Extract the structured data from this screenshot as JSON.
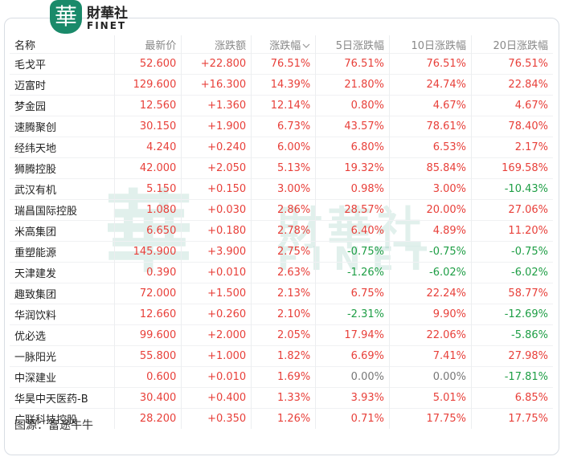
{
  "header": {
    "logo_mark": "華",
    "brand": "財華社",
    "brand_en": "FINET"
  },
  "table": {
    "columns": [
      "名称",
      "最新价",
      "涨跌额",
      "涨跌幅",
      "5日涨跌幅",
      "10日涨跌幅",
      "20日涨跌幅"
    ],
    "rows": [
      [
        "毛戈平",
        "52.600",
        "+22.800",
        "76.51%",
        "76.51%",
        "76.51%",
        "76.51%"
      ],
      [
        "迈富时",
        "129.600",
        "+16.300",
        "14.39%",
        "21.80%",
        "24.74%",
        "22.84%"
      ],
      [
        "梦金园",
        "12.560",
        "+1.360",
        "12.14%",
        "0.80%",
        "4.67%",
        "4.67%"
      ],
      [
        "速腾聚创",
        "30.150",
        "+1.900",
        "6.73%",
        "43.57%",
        "78.61%",
        "78.40%"
      ],
      [
        "经纬天地",
        "4.240",
        "+0.240",
        "6.00%",
        "6.80%",
        "6.53%",
        "2.17%"
      ],
      [
        "狮腾控股",
        "42.000",
        "+2.050",
        "5.13%",
        "19.32%",
        "85.84%",
        "169.58%"
      ],
      [
        "武汉有机",
        "5.150",
        "+0.150",
        "3.00%",
        "0.98%",
        "3.00%",
        "-10.43%"
      ],
      [
        "瑞昌国际控股",
        "1.080",
        "+0.030",
        "2.86%",
        "28.57%",
        "20.00%",
        "27.06%"
      ],
      [
        "米高集团",
        "6.650",
        "+0.180",
        "2.78%",
        "6.40%",
        "4.89%",
        "11.20%"
      ],
      [
        "重塑能源",
        "145.900",
        "+3.900",
        "2.75%",
        "-0.75%",
        "-0.75%",
        "-0.75%"
      ],
      [
        "天津建发",
        "0.390",
        "+0.010",
        "2.63%",
        "-1.26%",
        "-6.02%",
        "-6.02%"
      ],
      [
        "趣致集团",
        "72.000",
        "+1.500",
        "2.13%",
        "6.75%",
        "22.24%",
        "58.77%"
      ],
      [
        "华润饮料",
        "12.660",
        "+0.260",
        "2.10%",
        "-2.31%",
        "9.90%",
        "-12.69%"
      ],
      [
        "优必选",
        "99.600",
        "+2.000",
        "2.05%",
        "17.94%",
        "22.06%",
        "-5.86%"
      ],
      [
        "一脉阳光",
        "55.800",
        "+1.000",
        "1.82%",
        "6.69%",
        "7.41%",
        "27.98%"
      ],
      [
        "中深建业",
        "0.600",
        "+0.010",
        "1.69%",
        "0.00%",
        "0.00%",
        "-17.81%"
      ],
      [
        "华昊中天医药-B",
        "30.400",
        "+0.400",
        "1.33%",
        "3.93%",
        "5.01%",
        "6.85%"
      ],
      [
        "广联科技控股",
        "28.200",
        "+0.350",
        "1.26%",
        "0.71%",
        "17.75%",
        "17.75%"
      ]
    ]
  },
  "source": "图源：富途牛牛"
}
